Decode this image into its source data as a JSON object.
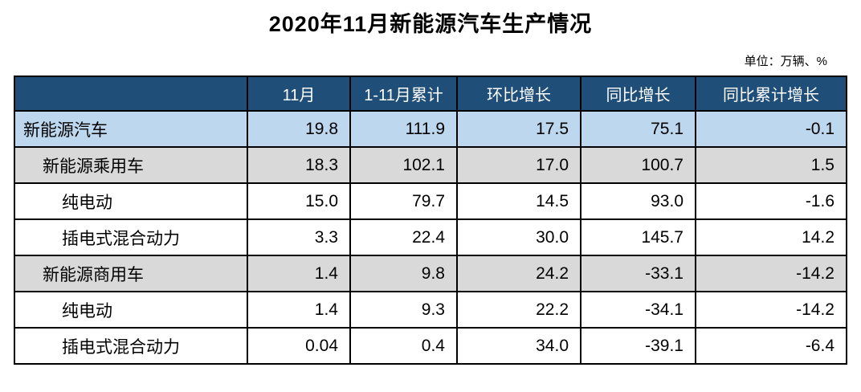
{
  "chart_data": {
    "type": "table",
    "title": "2020年11月新能源汽车生产情况",
    "unit_label": "单位：万辆、%",
    "columns": [
      "",
      "11月",
      "1-11月累计",
      "环比增长",
      "同比增长",
      "同比累计增长"
    ],
    "rows": [
      {
        "label": "新能源汽车",
        "indent": 0,
        "bg": "blue",
        "values": [
          "19.8",
          "111.9",
          "17.5",
          "75.1",
          "-0.1"
        ]
      },
      {
        "label": "新能源乘用车",
        "indent": 1,
        "bg": "gray",
        "values": [
          "18.3",
          "102.1",
          "17.0",
          "100.7",
          "1.5"
        ]
      },
      {
        "label": "纯电动",
        "indent": 2,
        "bg": "white",
        "values": [
          "15.0",
          "79.7",
          "14.5",
          "93.0",
          "-1.6"
        ]
      },
      {
        "label": "插电式混合动力",
        "indent": 2,
        "bg": "white",
        "values": [
          "3.3",
          "22.4",
          "30.0",
          "145.7",
          "14.2"
        ]
      },
      {
        "label": "新能源商用车",
        "indent": 1,
        "bg": "gray",
        "values": [
          "1.4",
          "9.8",
          "24.2",
          "-33.1",
          "-14.2"
        ]
      },
      {
        "label": "纯电动",
        "indent": 2,
        "bg": "white",
        "values": [
          "1.4",
          "9.3",
          "22.2",
          "-34.1",
          "-14.2"
        ]
      },
      {
        "label": "插电式混合动力",
        "indent": 2,
        "bg": "white",
        "values": [
          "0.04",
          "0.4",
          "34.0",
          "-39.1",
          "-6.4"
        ]
      }
    ]
  },
  "colors": {
    "header_bg": "#1F4E79",
    "header_text": "#FFFFFF",
    "row_highlight_blue": "#BDD7EE",
    "row_gray": "#D9D9D9",
    "row_white": "#FFFFFF",
    "border": "#000000"
  }
}
